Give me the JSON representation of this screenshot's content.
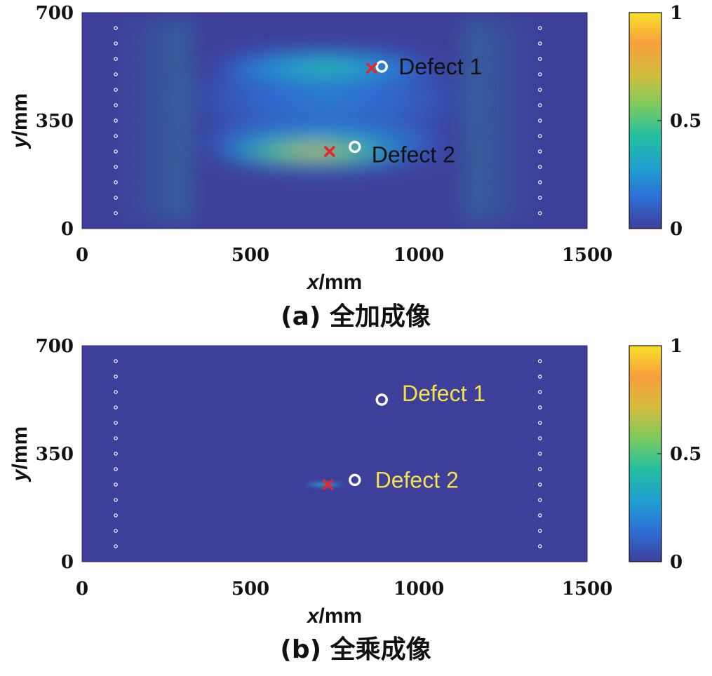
{
  "colors": {
    "plot_background": "#3e3f9a",
    "sensor": "#ffffff",
    "estimate_marker": "#e8232a",
    "true_marker": "#ffffff",
    "label_dark": "#111111",
    "label_yellow": "#f2e24e",
    "colormap": [
      "#3e3f9a",
      "#2d6fd6",
      "#1fa0cf",
      "#22bfa0",
      "#7cca5e",
      "#d4bc3c",
      "#f79e3c",
      "#f9e02a"
    ]
  },
  "chart_data": [
    {
      "id": "a",
      "type": "heatmap",
      "caption": "(a) 全加成像",
      "xlabel_var": "x",
      "xlabel_unit": "/mm",
      "ylabel_var": "y",
      "ylabel_unit": "/mm",
      "xlim": [
        0,
        1500
      ],
      "ylim": [
        0,
        700
      ],
      "xticks": [
        {
          "value": 0,
          "label": "0"
        },
        {
          "value": 500,
          "label": "500"
        },
        {
          "value": 1000,
          "label": "1000"
        },
        {
          "value": 1500,
          "label": "1500"
        }
      ],
      "yticks": [
        {
          "value": 0,
          "label": "0"
        },
        {
          "value": 350,
          "label": "350"
        },
        {
          "value": 700,
          "label": "700"
        }
      ],
      "colorbar": {
        "range": [
          0,
          1
        ],
        "ticks": [
          {
            "value": 0,
            "label": "0"
          },
          {
            "value": 0.5,
            "label": "0.5"
          },
          {
            "value": 1,
            "label": "1"
          }
        ]
      },
      "sensor_arrays": [
        {
          "x": 100,
          "y_values": [
            50,
            100,
            150,
            200,
            250,
            300,
            350,
            400,
            450,
            500,
            550,
            600,
            650
          ]
        },
        {
          "x": 1360,
          "y_values": [
            50,
            100,
            150,
            200,
            250,
            300,
            350,
            400,
            450,
            500,
            550,
            600,
            650
          ]
        }
      ],
      "defects": [
        {
          "name": "Defect 1",
          "true_x": 890,
          "true_y": 525,
          "est_x": 860,
          "est_y": 520,
          "label_x": 940,
          "label_y": 500,
          "label_color": "label_dark",
          "show_estimate": true
        },
        {
          "name": "Defect 2",
          "true_x": 810,
          "true_y": 265,
          "est_x": 735,
          "est_y": 250,
          "label_x": 860,
          "label_y": 215,
          "label_color": "label_dark",
          "show_estimate": true
        }
      ],
      "intensity_features": [
        {
          "kind": "blob",
          "cx": 690,
          "cy": 250,
          "rx": 330,
          "ry": 55,
          "peak": 0.85
        },
        {
          "kind": "blob",
          "cx": 720,
          "cy": 275,
          "rx": 430,
          "ry": 110,
          "peak": 0.35
        },
        {
          "kind": "blob",
          "cx": 720,
          "cy": 520,
          "rx": 380,
          "ry": 75,
          "peak": 0.45
        },
        {
          "kind": "blob",
          "cx": 730,
          "cy": 420,
          "rx": 480,
          "ry": 170,
          "peak": 0.2
        }
      ]
    },
    {
      "id": "b",
      "type": "heatmap",
      "caption": "(b) 全乘成像",
      "xlabel_var": "x",
      "xlabel_unit": "/mm",
      "ylabel_var": "y",
      "ylabel_unit": "/mm",
      "xlim": [
        0,
        1500
      ],
      "ylim": [
        0,
        700
      ],
      "xticks": [
        {
          "value": 0,
          "label": "0"
        },
        {
          "value": 500,
          "label": "500"
        },
        {
          "value": 1000,
          "label": "1000"
        },
        {
          "value": 1500,
          "label": "1500"
        }
      ],
      "yticks": [
        {
          "value": 0,
          "label": "0"
        },
        {
          "value": 350,
          "label": "350"
        },
        {
          "value": 700,
          "label": "700"
        }
      ],
      "colorbar": {
        "range": [
          0,
          1
        ],
        "ticks": [
          {
            "value": 0,
            "label": "0"
          },
          {
            "value": 0.5,
            "label": "0.5"
          },
          {
            "value": 1,
            "label": "1"
          }
        ]
      },
      "sensor_arrays": [
        {
          "x": 100,
          "y_values": [
            50,
            100,
            150,
            200,
            250,
            300,
            350,
            400,
            450,
            500,
            550,
            600,
            650
          ]
        },
        {
          "x": 1360,
          "y_values": [
            50,
            100,
            150,
            200,
            250,
            300,
            350,
            400,
            450,
            500,
            550,
            600,
            650
          ]
        }
      ],
      "defects": [
        {
          "name": "Defect 1",
          "true_x": 890,
          "true_y": 525,
          "est_x": null,
          "est_y": null,
          "label_x": 950,
          "label_y": 520,
          "label_color": "label_yellow",
          "show_estimate": false
        },
        {
          "name": "Defect 2",
          "true_x": 810,
          "true_y": 265,
          "est_x": 730,
          "est_y": 250,
          "label_x": 870,
          "label_y": 240,
          "label_color": "label_yellow",
          "show_estimate": true
        }
      ],
      "intensity_features": [
        {
          "kind": "blob",
          "cx": 720,
          "cy": 250,
          "rx": 70,
          "ry": 8,
          "peak": 0.5
        }
      ]
    }
  ]
}
